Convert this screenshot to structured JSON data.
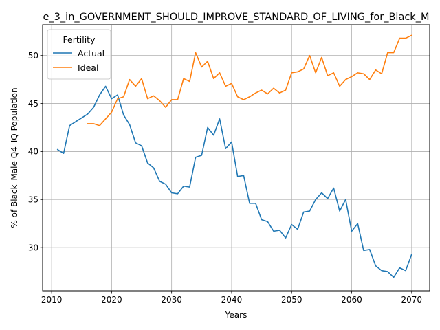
{
  "chart_data": {
    "type": "line",
    "title": "e_3_in_GOVERNMENT_SHOULD_IMPROVE_STANDARD_OF_LIVING_for_Black_M",
    "xlabel": "Years",
    "ylabel": "% of Black_Male Q4_IQ Population",
    "xlim": [
      2008.5,
      2073
    ],
    "ylim": [
      25.5,
      53.2
    ],
    "xticks": [
      2010,
      2020,
      2030,
      2040,
      2050,
      2060,
      2070
    ],
    "yticks": [
      30,
      35,
      40,
      45,
      50
    ],
    "grid": true,
    "legend": {
      "title": "Fertility",
      "placement": "top-left"
    },
    "series": [
      {
        "name": "Actual",
        "color": "#1f77b4",
        "x": [
          2011,
          2012,
          2013,
          2014,
          2015,
          2016,
          2017,
          2018,
          2019,
          2020,
          2021,
          2022,
          2023,
          2024,
          2025,
          2026,
          2027,
          2028,
          2029,
          2030,
          2031,
          2032,
          2033,
          2034,
          2035,
          2036,
          2037,
          2038,
          2039,
          2040,
          2041,
          2042,
          2043,
          2044,
          2045,
          2046,
          2047,
          2048,
          2049,
          2050,
          2051,
          2052,
          2053,
          2054,
          2055,
          2056,
          2057,
          2058,
          2059,
          2060,
          2061,
          2062,
          2063,
          2064,
          2065,
          2066,
          2067,
          2068,
          2069,
          2070
        ],
        "y": [
          40.2,
          39.8,
          42.7,
          43.1,
          43.5,
          43.9,
          44.6,
          45.9,
          46.8,
          45.5,
          45.9,
          43.8,
          42.8,
          40.9,
          40.6,
          38.8,
          38.3,
          36.9,
          36.6,
          35.7,
          35.6,
          36.4,
          36.3,
          39.4,
          39.6,
          42.5,
          41.7,
          43.4,
          40.3,
          41.0,
          37.4,
          37.5,
          34.6,
          34.6,
          32.9,
          32.7,
          31.7,
          31.8,
          31.0,
          32.4,
          31.9,
          33.7,
          33.8,
          35.0,
          35.7,
          35.1,
          36.2,
          33.8,
          35.0,
          31.7,
          32.5,
          29.7,
          29.8,
          28.1,
          27.6,
          27.5,
          26.9,
          27.9,
          27.6,
          29.3
        ]
      },
      {
        "name": "Ideal",
        "color": "#ff7f0e",
        "x": [
          2016,
          2017,
          2018,
          2019,
          2020,
          2021,
          2022,
          2023,
          2024,
          2025,
          2026,
          2027,
          2028,
          2029,
          2030,
          2031,
          2032,
          2033,
          2034,
          2035,
          2036,
          2037,
          2038,
          2039,
          2040,
          2041,
          2042,
          2043,
          2044,
          2045,
          2046,
          2047,
          2048,
          2049,
          2050,
          2051,
          2052,
          2053,
          2054,
          2055,
          2056,
          2057,
          2058,
          2059,
          2060,
          2061,
          2062,
          2063,
          2064,
          2065,
          2066,
          2067,
          2068,
          2069,
          2070
        ],
        "y": [
          42.9,
          42.9,
          42.7,
          43.4,
          44.1,
          45.5,
          45.7,
          47.5,
          46.8,
          47.6,
          45.5,
          45.8,
          45.3,
          44.6,
          45.4,
          45.4,
          47.6,
          47.3,
          50.3,
          48.8,
          49.4,
          47.6,
          48.2,
          46.8,
          47.1,
          45.7,
          45.4,
          45.7,
          46.1,
          46.4,
          46.0,
          46.6,
          46.1,
          46.4,
          48.2,
          48.3,
          48.6,
          50.0,
          48.2,
          49.8,
          47.9,
          48.2,
          46.8,
          47.5,
          47.8,
          48.2,
          48.1,
          47.5,
          48.5,
          48.1,
          50.3,
          50.3,
          51.8,
          51.8,
          52.1
        ]
      }
    ]
  }
}
